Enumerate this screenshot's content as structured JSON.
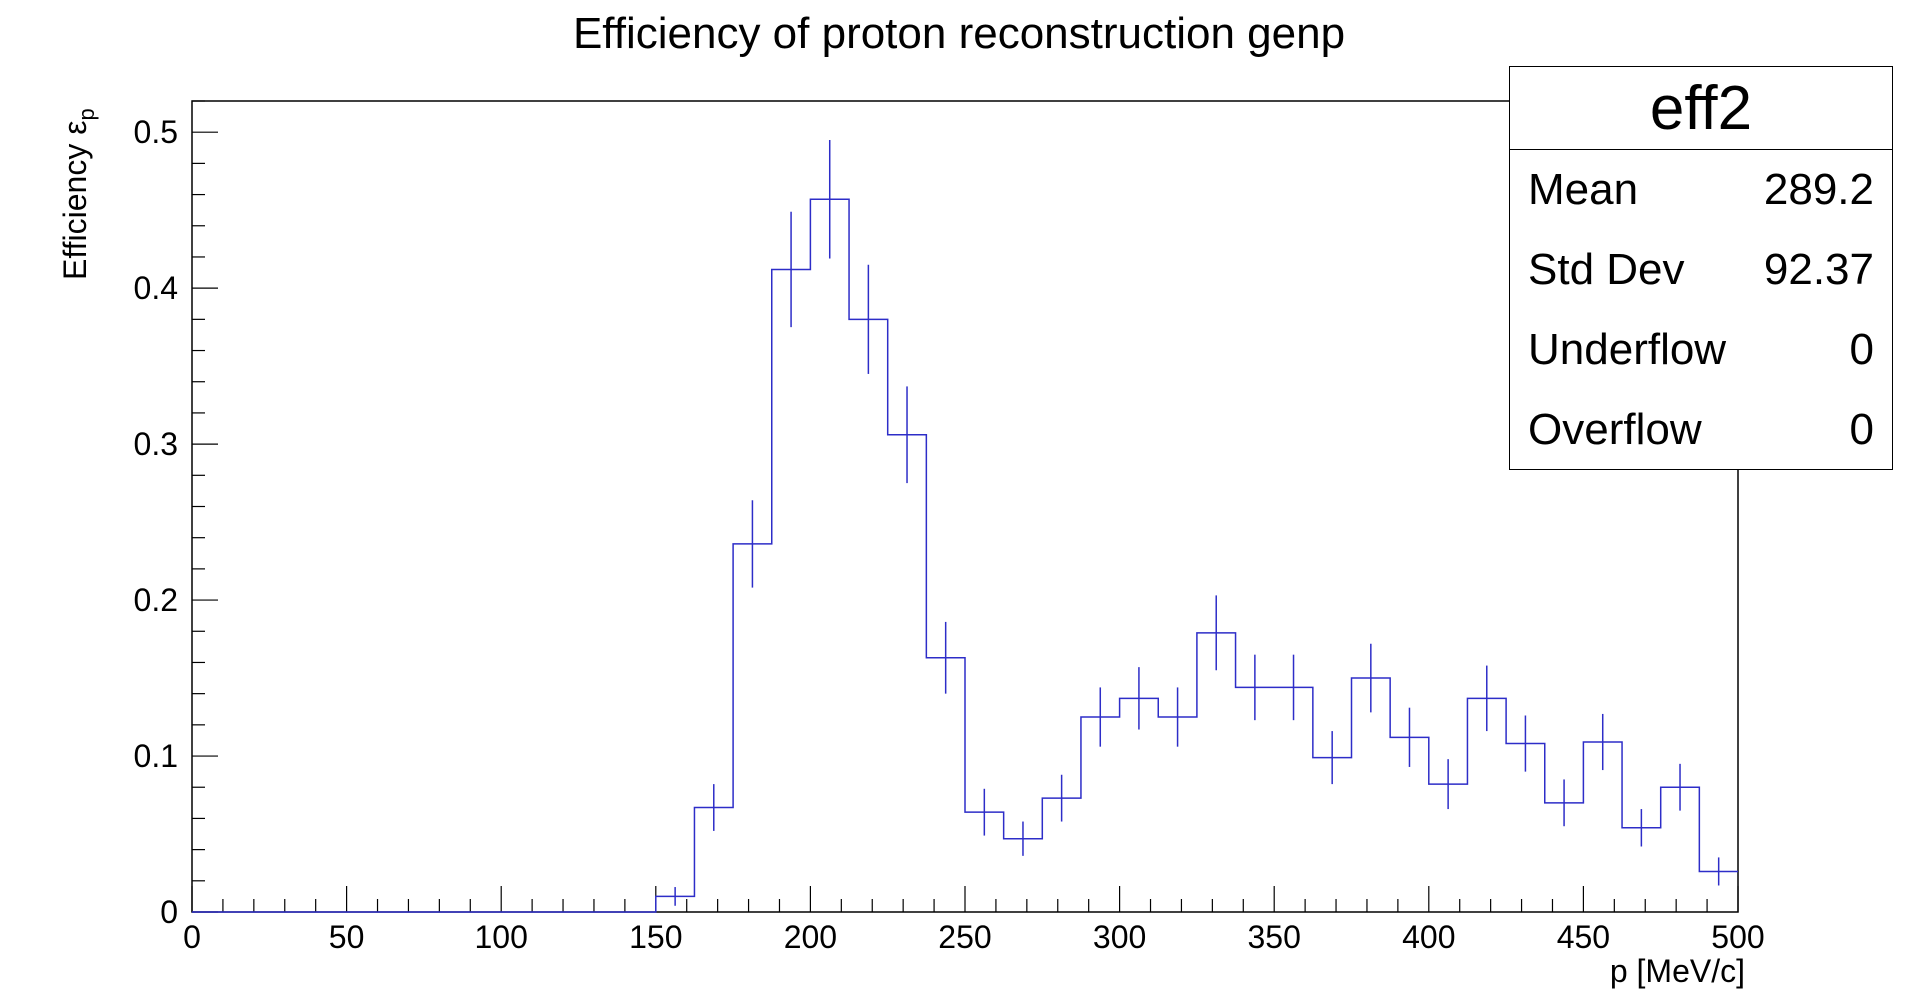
{
  "chart_data": {
    "type": "histogram",
    "title": "Efficiency of proton reconstruction genp",
    "xlabel": "p [MeV/c]",
    "ylabel": "Efficiency ε",
    "ylabel_subscript": "p",
    "xlim": [
      0,
      500
    ],
    "ylim": [
      0,
      0.52
    ],
    "x_ticks": [
      0,
      50,
      100,
      150,
      200,
      250,
      300,
      350,
      400,
      450,
      500
    ],
    "x_tick_labels": [
      "0",
      "50",
      "100",
      "150",
      "200",
      "250",
      "300",
      "350",
      "400",
      "450",
      "500"
    ],
    "y_ticks": [
      0,
      0.1,
      0.2,
      0.3,
      0.4,
      0.5
    ],
    "y_tick_labels": [
      "0",
      "0.1",
      "0.2",
      "0.3",
      "0.4",
      "0.5"
    ],
    "bin_width": 12.5,
    "bin_edges_start": 0,
    "values": [
      0,
      0,
      0,
      0,
      0,
      0,
      0,
      0,
      0,
      0,
      0,
      0,
      0.01,
      0.067,
      0.236,
      0.412,
      0.457,
      0.38,
      0.306,
      0.163,
      0.064,
      0.047,
      0.073,
      0.125,
      0.137,
      0.125,
      0.179,
      0.144,
      0.144,
      0.099,
      0.15,
      0.112,
      0.082,
      0.137,
      0.108,
      0.07,
      0.109,
      0.054,
      0.08,
      0.026
    ],
    "errors": [
      0,
      0,
      0,
      0,
      0,
      0,
      0,
      0,
      0,
      0,
      0,
      0,
      0.006,
      0.015,
      0.028,
      0.037,
      0.038,
      0.035,
      0.031,
      0.023,
      0.015,
      0.011,
      0.015,
      0.019,
      0.02,
      0.019,
      0.024,
      0.021,
      0.021,
      0.017,
      0.022,
      0.019,
      0.016,
      0.021,
      0.018,
      0.015,
      0.018,
      0.012,
      0.015,
      0.009
    ],
    "line_color": "#2d2dc8"
  },
  "stats_box": {
    "title": "eff2",
    "rows": [
      {
        "label": "Mean",
        "value": "289.2"
      },
      {
        "label": "Std Dev",
        "value": "92.37"
      },
      {
        "label": "Underflow",
        "value": "0"
      },
      {
        "label": "Overflow",
        "value": "0"
      }
    ]
  }
}
